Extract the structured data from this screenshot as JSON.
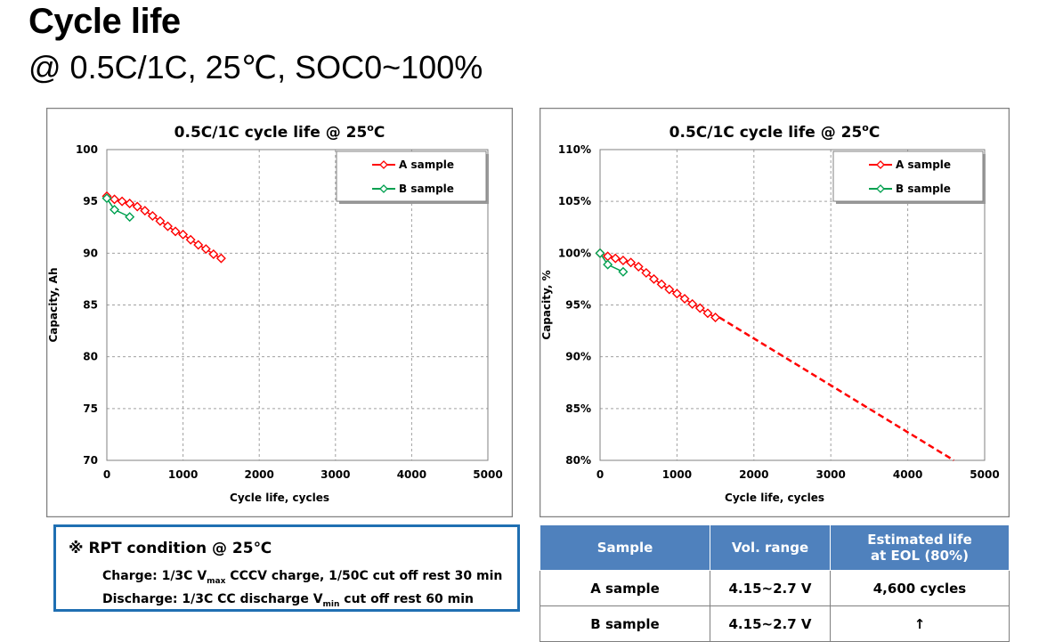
{
  "header": {
    "title": "Cycle life",
    "subtitle": "@ 0.5C/1C, 25℃, SOC0~100%"
  },
  "chart_data": [
    {
      "type": "line",
      "title": "0.5C/1C cycle life @ 25",
      "title_sup": "o",
      "title_suffix": "C",
      "xlabel": "Cycle life, cycles",
      "ylabel": "Capacity, Ah",
      "xlim": [
        0,
        5000
      ],
      "ylim": [
        70,
        100
      ],
      "x_ticks": [
        0,
        1000,
        2000,
        3000,
        4000,
        5000
      ],
      "y_ticks": [
        70,
        75,
        80,
        85,
        90,
        95,
        100
      ],
      "y_tick_labels": [
        "70",
        "75",
        "80",
        "85",
        "90",
        "95",
        "100"
      ],
      "grid": true,
      "legend_position": "top-right",
      "series": [
        {
          "name": "A sample",
          "color": "#ff0000",
          "marker": "diamond",
          "points": [
            [
              0,
              95.5
            ],
            [
              100,
              95.2
            ],
            [
              200,
              95.0
            ],
            [
              300,
              94.8
            ],
            [
              400,
              94.5
            ],
            [
              500,
              94.1
            ],
            [
              600,
              93.6
            ],
            [
              700,
              93.1
            ],
            [
              800,
              92.6
            ],
            [
              900,
              92.1
            ],
            [
              1000,
              91.8
            ],
            [
              1100,
              91.3
            ],
            [
              1200,
              90.8
            ],
            [
              1300,
              90.4
            ],
            [
              1400,
              89.9
            ],
            [
              1500,
              89.5
            ]
          ]
        },
        {
          "name": "B sample",
          "color": "#00a050",
          "marker": "diamond",
          "points": [
            [
              0,
              95.3
            ],
            [
              100,
              94.2
            ],
            [
              300,
              93.5
            ]
          ]
        }
      ]
    },
    {
      "type": "line",
      "title": "0.5C/1C cycle life @ 25",
      "title_sup": "o",
      "title_suffix": "C",
      "xlabel": "Cycle life, cycles",
      "ylabel": "Capacity, %",
      "xlim": [
        0,
        5000
      ],
      "ylim": [
        80,
        110
      ],
      "x_ticks": [
        0,
        1000,
        2000,
        3000,
        4000,
        5000
      ],
      "y_ticks": [
        80,
        85,
        90,
        95,
        100,
        105,
        110
      ],
      "y_tick_labels": [
        "80%",
        "85%",
        "90%",
        "95%",
        "100%",
        "105%",
        "110%"
      ],
      "grid": true,
      "legend_position": "top-right",
      "series": [
        {
          "name": "A sample",
          "color": "#ff0000",
          "marker": "diamond",
          "points": [
            [
              0,
              100.0
            ],
            [
              100,
              99.7
            ],
            [
              200,
              99.5
            ],
            [
              300,
              99.3
            ],
            [
              400,
              99.1
            ],
            [
              500,
              98.7
            ],
            [
              600,
              98.1
            ],
            [
              700,
              97.5
            ],
            [
              800,
              97.0
            ],
            [
              900,
              96.5
            ],
            [
              1000,
              96.1
            ],
            [
              1100,
              95.6
            ],
            [
              1200,
              95.1
            ],
            [
              1300,
              94.7
            ],
            [
              1400,
              94.2
            ],
            [
              1500,
              93.8
            ]
          ],
          "extrapolation": [
            [
              1550,
              93.8
            ],
            [
              4600,
              80.0
            ]
          ]
        },
        {
          "name": "B sample",
          "color": "#00a050",
          "marker": "diamond",
          "points": [
            [
              0,
              100.0
            ],
            [
              100,
              98.9
            ],
            [
              300,
              98.2
            ]
          ]
        }
      ]
    }
  ],
  "rpt": {
    "title": "※ RPT condition @ 25℃",
    "charge_pre": "Charge: 1/3C V",
    "charge_sub": "max",
    "charge_post": " CCCV charge, 1/50C cut off rest 30 min",
    "discharge_pre": "Discharge: 1/3C CC discharge V",
    "discharge_sub": "min",
    "discharge_post": " cut off  rest 60 min"
  },
  "table": {
    "headers": [
      "Sample",
      "Vol. range",
      "Estimated life",
      "at EOL (80%)"
    ],
    "rows": [
      [
        "A sample",
        "4.15~2.7 V",
        "4,600 cycles"
      ],
      [
        "B sample",
        "4.15~2.7 V",
        "↑"
      ]
    ]
  }
}
